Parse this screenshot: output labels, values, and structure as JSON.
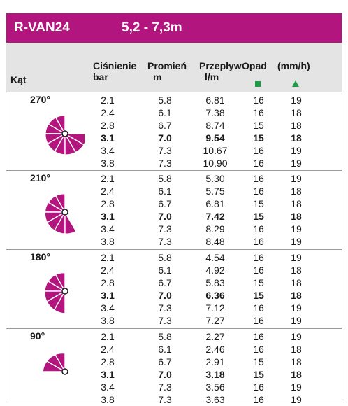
{
  "title": {
    "model": "R-VAN24",
    "range": "5,2 - 7,3m"
  },
  "colors": {
    "brand": "#b3157e",
    "header_bg": "#e4e4e4",
    "square_marker": "#1f9a48",
    "triangle_marker": "#1f9a48",
    "fan_fill": "#b3157e"
  },
  "header": {
    "angle": "Kąt",
    "pressure_1": "Ciśnienie",
    "pressure_2": "bar",
    "radius_1": "Promień",
    "radius_2": "m",
    "flow_1": "Przepływ",
    "flow_2": "l/m",
    "precip": "Opad",
    "unit": "(mm/h)",
    "square_icon": "square-marker",
    "triangle_icon": "triangle-marker"
  },
  "sections": [
    {
      "angle": "270°",
      "rows": [
        {
          "pressure": "2.1",
          "radius": "5.8",
          "flow": "6.81",
          "sq": "16",
          "tri": "19"
        },
        {
          "pressure": "2.4",
          "radius": "6.1",
          "flow": "7.38",
          "sq": "16",
          "tri": "18"
        },
        {
          "pressure": "2.8",
          "radius": "6.7",
          "flow": "8.74",
          "sq": "15",
          "tri": "18"
        },
        {
          "pressure": "3.1",
          "radius": "7.0",
          "flow": "9.54",
          "sq": "15",
          "tri": "18",
          "bold": true
        },
        {
          "pressure": "3.4",
          "radius": "7.3",
          "flow": "10.67",
          "sq": "16",
          "tri": "19"
        },
        {
          "pressure": "3.8",
          "radius": "7.3",
          "flow": "10.90",
          "sq": "16",
          "tri": "19"
        }
      ]
    },
    {
      "angle": "210°",
      "rows": [
        {
          "pressure": "2.1",
          "radius": "5.8",
          "flow": "5.30",
          "sq": "16",
          "tri": "19"
        },
        {
          "pressure": "2.4",
          "radius": "6.1",
          "flow": "5.75",
          "sq": "16",
          "tri": "18"
        },
        {
          "pressure": "2.8",
          "radius": "6.7",
          "flow": "6.81",
          "sq": "15",
          "tri": "18"
        },
        {
          "pressure": "3.1",
          "radius": "7.0",
          "flow": "7.42",
          "sq": "15",
          "tri": "18",
          "bold": true
        },
        {
          "pressure": "3.4",
          "radius": "7.3",
          "flow": "8.29",
          "sq": "16",
          "tri": "19"
        },
        {
          "pressure": "3.8",
          "radius": "7.3",
          "flow": "8.48",
          "sq": "16",
          "tri": "19"
        }
      ]
    },
    {
      "angle": "180°",
      "rows": [
        {
          "pressure": "2.1",
          "radius": "5.8",
          "flow": "4.54",
          "sq": "16",
          "tri": "19"
        },
        {
          "pressure": "2.4",
          "radius": "6.1",
          "flow": "4.92",
          "sq": "16",
          "tri": "18"
        },
        {
          "pressure": "2.8",
          "radius": "6.7",
          "flow": "5.83",
          "sq": "15",
          "tri": "18"
        },
        {
          "pressure": "3.1",
          "radius": "7.0",
          "flow": "6.36",
          "sq": "15",
          "tri": "18",
          "bold": true
        },
        {
          "pressure": "3.4",
          "radius": "7.3",
          "flow": "7.12",
          "sq": "16",
          "tri": "19"
        },
        {
          "pressure": "3.8",
          "radius": "7.3",
          "flow": "7.27",
          "sq": "16",
          "tri": "19"
        }
      ]
    },
    {
      "angle": "90°",
      "rows": [
        {
          "pressure": "2.1",
          "radius": "5.8",
          "flow": "2.27",
          "sq": "16",
          "tri": "19"
        },
        {
          "pressure": "2.4",
          "radius": "6.1",
          "flow": "2.46",
          "sq": "16",
          "tri": "18"
        },
        {
          "pressure": "2.8",
          "radius": "6.7",
          "flow": "2.91",
          "sq": "15",
          "tri": "18"
        },
        {
          "pressure": "3.1",
          "radius": "7.0",
          "flow": "3.18",
          "sq": "15",
          "tri": "18",
          "bold": true
        },
        {
          "pressure": "3.4",
          "radius": "7.3",
          "flow": "3.56",
          "sq": "16",
          "tri": "19"
        },
        {
          "pressure": "3.8",
          "radius": "7.3",
          "flow": "3.63",
          "sq": "16",
          "tri": "19"
        }
      ]
    }
  ]
}
